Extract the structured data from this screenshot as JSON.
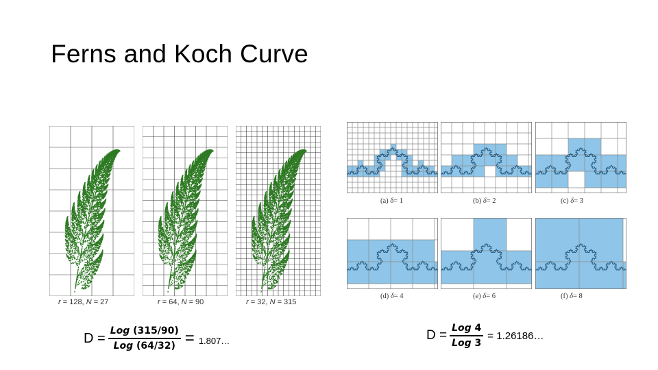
{
  "slide": {
    "title": "Ferns and Koch Curve"
  },
  "ferns": {
    "color": "#2d7a22",
    "panels": [
      {
        "caption_r": "r",
        "caption_rest": " = 128, ",
        "caption_N": "N",
        "caption_val": " = 27"
      },
      {
        "caption_r": "r",
        "caption_rest": " = 64, ",
        "caption_N": "N",
        "caption_val": " = 90"
      },
      {
        "caption_r": "r",
        "caption_rest": " = 32, ",
        "caption_N": "N",
        "caption_val": " = 315"
      }
    ]
  },
  "koch": {
    "fill_color": "#8ec5e8",
    "curve_color": "#2b5f86",
    "panels": [
      {
        "label": "(a) ",
        "delta": "δ",
        "value": "= 1"
      },
      {
        "label": "(b) ",
        "delta": "δ",
        "value": "= 2"
      },
      {
        "label": "(c) ",
        "delta": "δ",
        "value": "= 3"
      },
      {
        "label": "(d) ",
        "delta": "δ",
        "value": "= 4"
      },
      {
        "label": "(e) ",
        "delta": "δ",
        "value": "= 6"
      },
      {
        "label": "(f) ",
        "delta": "δ",
        "value": "= 8"
      }
    ]
  },
  "formulas": {
    "fern": {
      "lhs": "D =",
      "num_fn": "Log",
      "num_arg": " (315/90)",
      "den_fn": "Log",
      "den_arg": " (64/32)",
      "eq": "=",
      "result": "1.807…"
    },
    "koch": {
      "lhs": "D =",
      "num_fn": "Log",
      "num_arg": " 4",
      "den_fn": "Log",
      "den_arg": " 3",
      "eq": "= 1.26186…"
    }
  }
}
